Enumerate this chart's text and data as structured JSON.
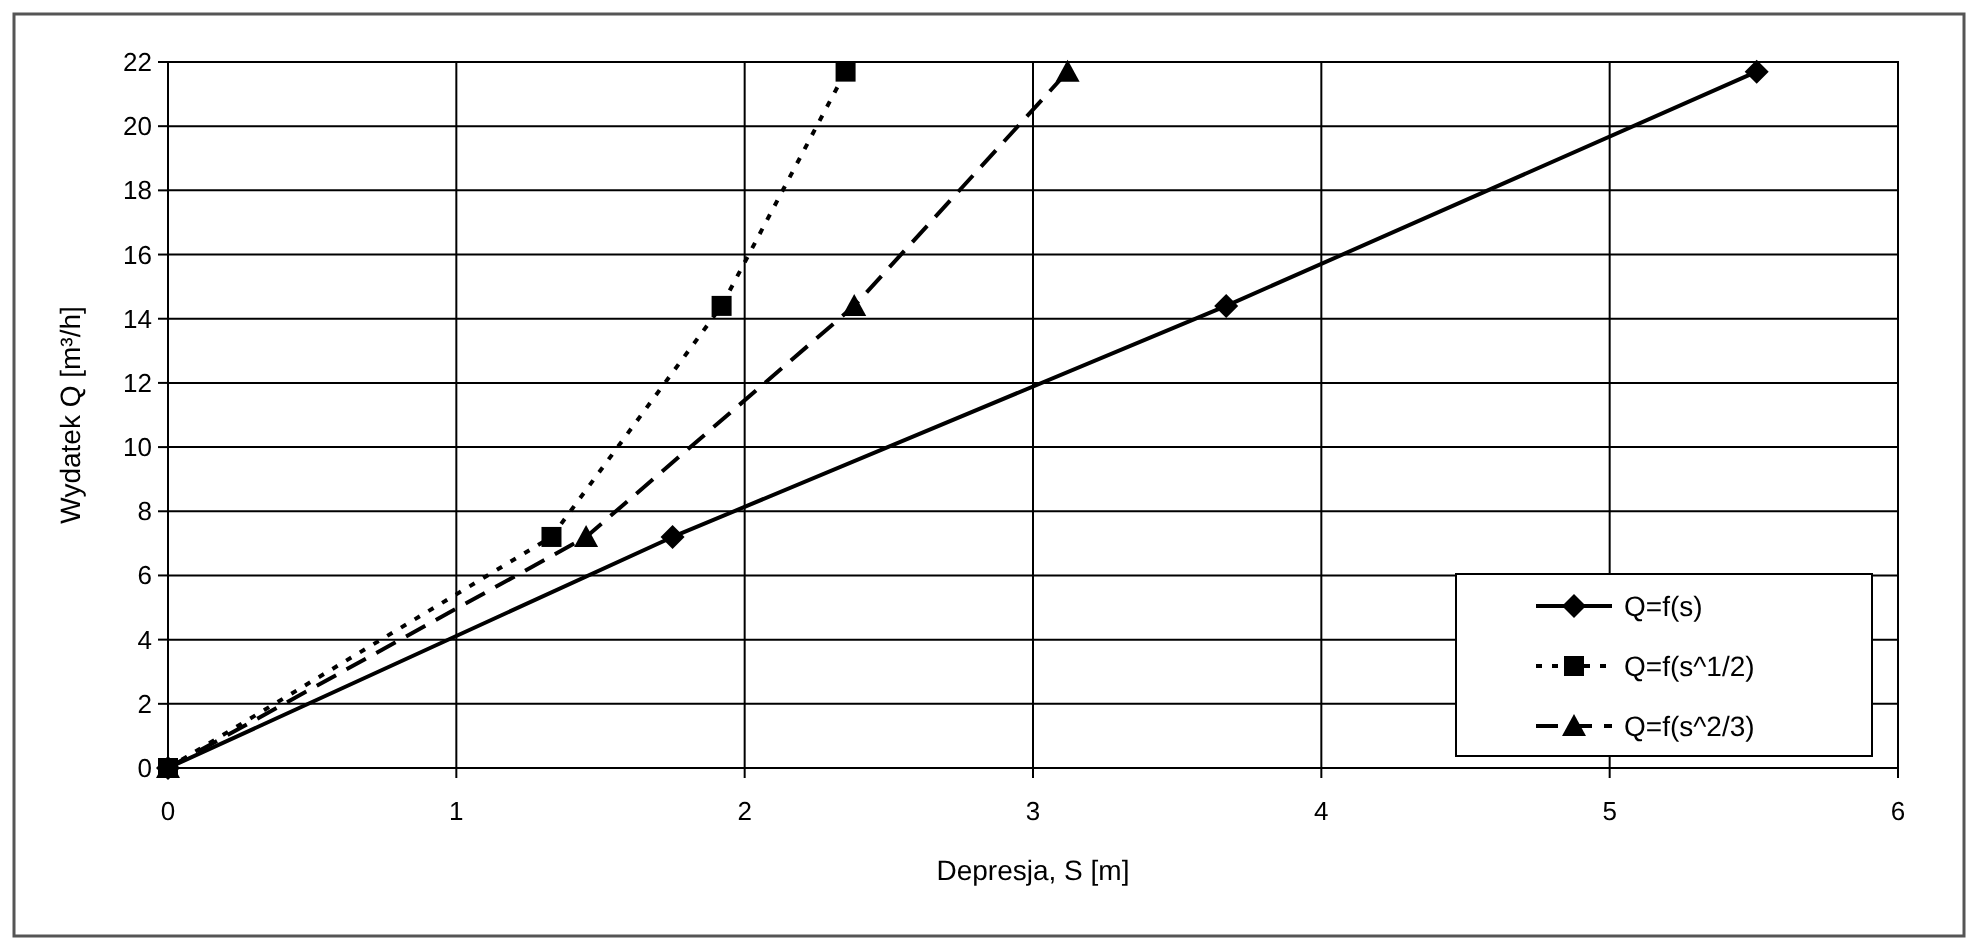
{
  "chart_data": {
    "type": "line",
    "xlabel": "Depresja, S [m]",
    "ylabel": "Wydatek Q [m³/h]",
    "xlim": [
      0,
      6
    ],
    "xticks": [
      0,
      1,
      2,
      3,
      4,
      5,
      6
    ],
    "ylim": [
      0,
      22
    ],
    "yticks": [
      0,
      2,
      4,
      6,
      8,
      10,
      12,
      14,
      16,
      18,
      20,
      22
    ],
    "grid": true,
    "legend": "bottom right",
    "series": [
      {
        "name": "Q=f(s)",
        "color": "#000000",
        "marker": "diamond",
        "line_style": "solid",
        "x": [
          0,
          1.75,
          3.67,
          5.51
        ],
        "values": [
          0,
          7.2,
          14.4,
          21.7
        ]
      },
      {
        "name": "Q=f(s^1/2)",
        "color": "#000000",
        "marker": "square",
        "line_style": "dotted",
        "x": [
          0,
          1.33,
          1.92,
          2.35
        ],
        "values": [
          0,
          7.2,
          14.4,
          21.7
        ]
      },
      {
        "name": "Q=f(s^2/3)",
        "color": "#000000",
        "marker": "triangle",
        "line_style": "dashed",
        "x": [
          0,
          1.45,
          2.38,
          3.12
        ],
        "values": [
          0,
          7.2,
          14.4,
          21.7
        ]
      }
    ]
  }
}
